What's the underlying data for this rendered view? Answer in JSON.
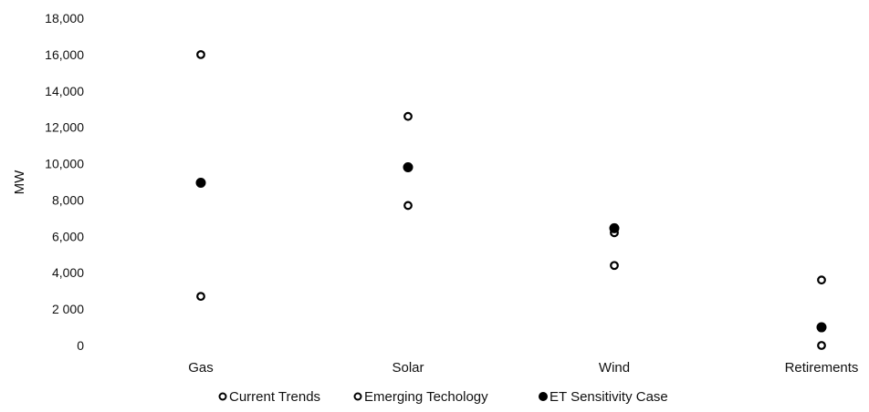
{
  "chart_data": {
    "type": "scatter",
    "ylabel": "MW",
    "xlabel": "",
    "title": "",
    "ylim": [
      0,
      18000
    ],
    "ytick_values": [
      0,
      2000,
      4000,
      6000,
      8000,
      10000,
      12000,
      14000,
      16000,
      18000
    ],
    "ytick_labels": [
      "0",
      "2 000",
      "4,000",
      "6,000",
      "8,000",
      "10,000",
      "12,000",
      "14,000",
      "16,000",
      "18,000"
    ],
    "categories": [
      "Gas",
      "Solar",
      "Wind",
      "Retirements"
    ],
    "series": [
      {
        "name": "Current Trends",
        "marker": "open-circle",
        "values": [
          2700,
          12600,
          4400,
          0
        ]
      },
      {
        "name": "Emerging Techology",
        "marker": "open-circle",
        "values": [
          16000,
          7700,
          6200,
          3600
        ]
      },
      {
        "name": "ET Sensitivity Case",
        "marker": "filled-circle",
        "values": [
          8950,
          9800,
          6450,
          1000
        ]
      }
    ],
    "grid": false,
    "legend_position": "bottom-center"
  },
  "colors": {
    "marker_stroke": "#000000",
    "marker_fill_open": "#ffffff",
    "marker_fill_filled": "#000000",
    "text": "#111111"
  }
}
